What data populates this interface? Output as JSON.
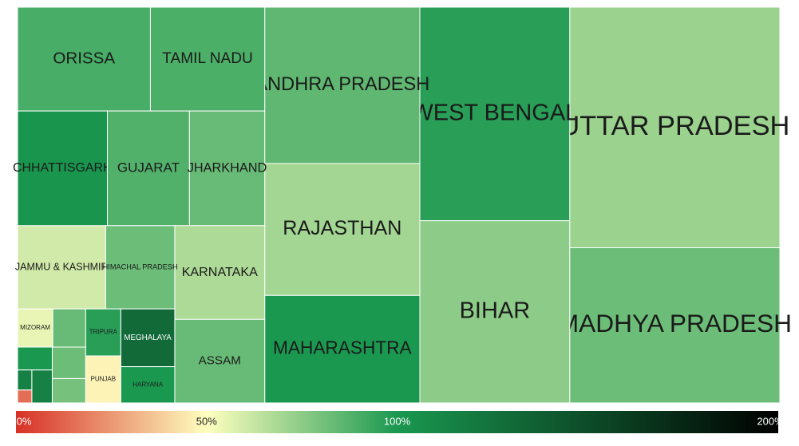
{
  "chart_data": {
    "type": "treemap",
    "categories": [
      "UTTAR PRADESH",
      "MADHYA PRADESH",
      "WEST BENGAL",
      "BIHAR",
      "ANDHRA PRADESH",
      "RAJASTHAN",
      "MAHARASHTRA",
      "ORISSA",
      "TAMIL NADU",
      "CHHATTISGARH",
      "GUJARAT",
      "JHARKHAND",
      "KARNATAKA",
      "ASSAM",
      "JAMMU & KASHMIR",
      "HIMACHAL PRADESH",
      "MEGHALAYA",
      "HARYANA",
      "TRIPURA",
      "PUNJAB",
      "MIZORAM",
      null,
      null,
      null,
      null,
      null,
      null,
      null
    ],
    "values": [
      79376,
      51200,
      50240,
      42880,
      38080,
      32130,
      26180,
      21658,
      18634,
      16170,
      14784,
      13552,
      13244,
      11808,
      11520,
      9024,
      4896,
      3072,
      2592,
      2592,
      2112,
      1968,
      1648,
      1280,
      1248,
      1056,
      448,
      288
    ],
    "color_values": [
      72,
      82,
      97,
      75,
      85,
      70,
      100,
      90,
      89,
      102,
      88,
      83,
      68,
      83,
      60,
      82,
      130,
      100,
      97,
      47,
      55,
      83,
      82,
      80,
      100,
      115,
      115,
      15
    ],
    "color_scale": {
      "colors": [
        "#d73027",
        "#ffffbf",
        "#1a9850",
        "#000000"
      ],
      "colorlim": [
        0,
        200
      ],
      "ticks": [
        {
          "value": 0,
          "label": "0%"
        },
        {
          "value": 50,
          "label": "50%"
        },
        {
          "value": 100,
          "label": "100%"
        },
        {
          "value": 200,
          "label": "200%"
        }
      ]
    }
  }
}
